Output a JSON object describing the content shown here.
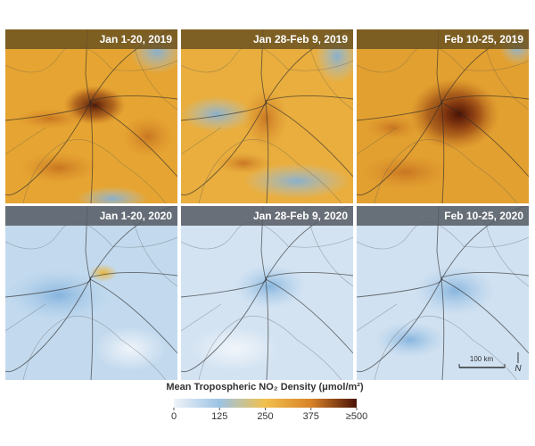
{
  "panels": [
    {
      "label": "Jan 1-20, 2019"
    },
    {
      "label": "Jan 28-Feb 9, 2019"
    },
    {
      "label": "Feb 10-25, 2019"
    },
    {
      "label": "Jan 1-20, 2020"
    },
    {
      "label": "Jan 28-Feb 9, 2020"
    },
    {
      "label": "Feb 10-25, 2020"
    }
  ],
  "scale_bar": "100 km",
  "north_arrow": "N",
  "legend": {
    "title": "Mean Tropospheric NO₂ Density (μmol/m²)",
    "ticks": [
      0,
      125,
      250,
      375,
      {
        "value": 500,
        "label": "≥500"
      }
    ]
  }
}
